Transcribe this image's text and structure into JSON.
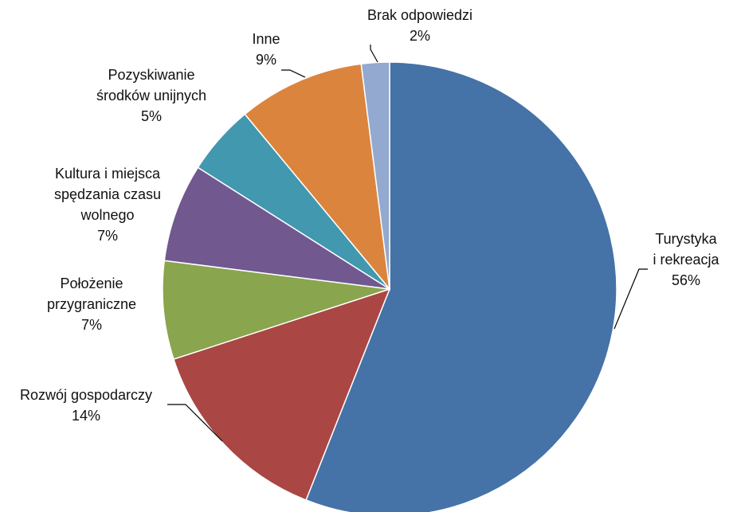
{
  "chart_data": {
    "type": "pie",
    "title": "",
    "slices": [
      {
        "label_lines": [
          "Turystyka",
          "i rekreacja"
        ],
        "percent_label": "56%",
        "value": 56,
        "color": "#4572A7"
      },
      {
        "label_lines": [
          "Rozwój gospodarczy"
        ],
        "percent_label": "14%",
        "value": 14,
        "color": "#AA4643"
      },
      {
        "label_lines": [
          "Położenie",
          "przygraniczne"
        ],
        "percent_label": "7%",
        "value": 7,
        "color": "#89A54E"
      },
      {
        "label_lines": [
          "Kultura i miejsca",
          "spędzania czasu",
          "wolnego"
        ],
        "percent_label": "7%",
        "value": 7,
        "color": "#71588F"
      },
      {
        "label_lines": [
          "Pozyskiwanie",
          "środków unijnych"
        ],
        "percent_label": "5%",
        "value": 5,
        "color": "#4198AF"
      },
      {
        "label_lines": [
          "Inne"
        ],
        "percent_label": "9%",
        "value": 9,
        "color": "#DB843D"
      },
      {
        "label_lines": [
          "Brak odpowiedzi"
        ],
        "percent_label": "2%",
        "value": 2,
        "color": "#93A9CF"
      }
    ],
    "legend": "none"
  }
}
